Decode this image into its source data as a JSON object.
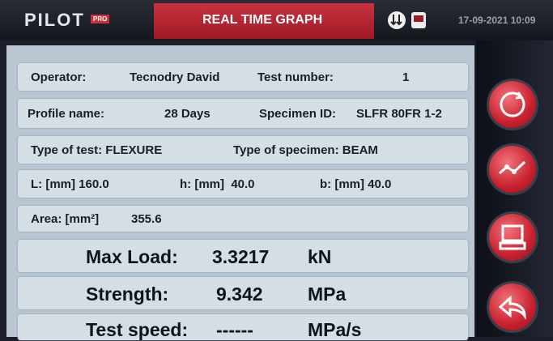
{
  "header": {
    "logo": "PILOT",
    "badge": "PRO",
    "title": "REAL TIME GRAPH",
    "datetime": "17-09-2021 10:09"
  },
  "rows": [
    [
      "Operator:",
      "Tecnodry David",
      "Test number:",
      "1"
    ],
    [
      "Profile name:",
      "28 Days",
      "Specimen ID:",
      "SLFR 80FR 1-2"
    ],
    [
      "Type of test: FLEXURE",
      "Type of specimen: BEAM"
    ],
    [
      "L: [mm] 160.0",
      "h: [mm]  40.0",
      "b: [mm] 40.0"
    ],
    [
      "Area: [mm²]",
      "355.6"
    ]
  ],
  "results": [
    [
      "Max Load:",
      "3.3217",
      "kN"
    ],
    [
      "Strength:",
      "9.342",
      "MPa"
    ],
    [
      "Test speed:",
      "------",
      "MPa/s"
    ]
  ]
}
